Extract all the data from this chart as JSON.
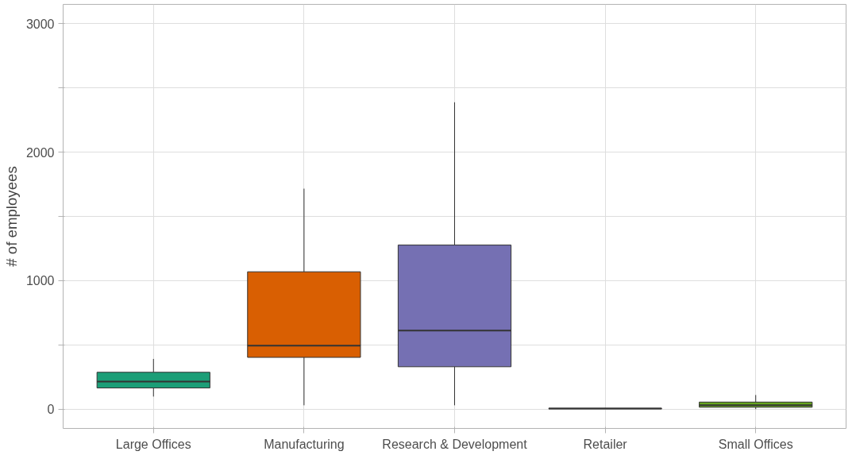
{
  "chart_data": {
    "type": "box",
    "ylabel": "# of employees",
    "categories": [
      "Large Offices",
      "Manufacturing",
      "Research & Development",
      "Retailer",
      "Small Offices"
    ],
    "colors": [
      "#1b9e77",
      "#d95f02",
      "#7570b3",
      "#e7298a",
      "#66a61e"
    ],
    "boxes": [
      {
        "low": 98,
        "q1": 165,
        "median": 214,
        "q3": 287,
        "high": 391
      },
      {
        "low": 30,
        "q1": 403,
        "median": 495,
        "q3": 1069,
        "high": 1716
      },
      {
        "low": 30,
        "q1": 330,
        "median": 611,
        "q3": 1277,
        "high": 2388
      },
      {
        "low": 3,
        "q1": 3,
        "median": 5,
        "q3": 7,
        "high": 8
      },
      {
        "low": 0,
        "q1": 15,
        "median": 30,
        "q3": 55,
        "high": 110
      }
    ],
    "ylim": [
      -150,
      3150
    ],
    "yticks": [
      0,
      {
        "value": 500,
        "label": null
      },
      1000,
      {
        "value": 1500,
        "label": null
      },
      2000,
      {
        "value": 2500,
        "label": null
      },
      3000
    ],
    "grid": true
  }
}
